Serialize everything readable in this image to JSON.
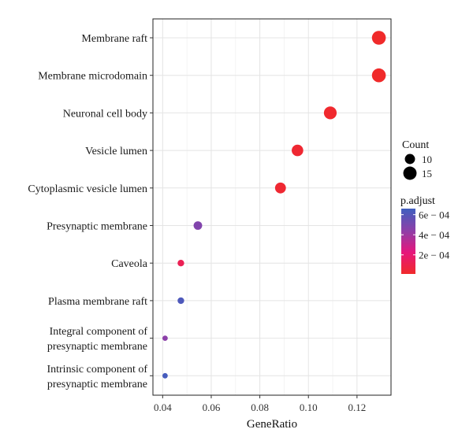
{
  "chart_data": {
    "type": "scatter",
    "title": "",
    "xlabel": "GeneRatio",
    "ylabel": "",
    "xlim": [
      0.036,
      0.134
    ],
    "x_ticks": [
      0.04,
      0.06,
      0.08,
      0.1,
      0.12
    ],
    "x_tick_labels": [
      "0.04",
      "0.06",
      "0.08",
      "0.10",
      "0.12"
    ],
    "grid": true,
    "legend_position": "right",
    "categories": [
      [
        "Membrane raft"
      ],
      [
        "Membrane microdomain"
      ],
      [
        "Neuronal cell body"
      ],
      [
        "Vesicle lumen"
      ],
      [
        "Cytoplasmic vesicle lumen"
      ],
      [
        "Presynaptic membrane"
      ],
      [
        "Caveola"
      ],
      [
        "Plasma membrane raft"
      ],
      [
        "Integral component of",
        "presynaptic membrane"
      ],
      [
        "Intrinsic component of",
        "presynaptic membrane"
      ]
    ],
    "points": [
      {
        "x": 0.129,
        "count": 16,
        "p_adjust": 1e-05
      },
      {
        "x": 0.129,
        "count": 16,
        "p_adjust": 1e-05
      },
      {
        "x": 0.109,
        "count": 14,
        "p_adjust": 2e-05
      },
      {
        "x": 0.0955,
        "count": 12,
        "p_adjust": 3e-05
      },
      {
        "x": 0.0885,
        "count": 11,
        "p_adjust": 3e-05
      },
      {
        "x": 0.0545,
        "count": 8,
        "p_adjust": 0.00048
      },
      {
        "x": 0.0475,
        "count": 6,
        "p_adjust": 0.00012
      },
      {
        "x": 0.0475,
        "count": 6,
        "p_adjust": 0.00062
      },
      {
        "x": 0.041,
        "count": 5,
        "p_adjust": 0.00045
      },
      {
        "x": 0.041,
        "count": 5,
        "p_adjust": 0.00064
      }
    ],
    "size_legend": {
      "title": "Count",
      "entries": [
        {
          "label": "10",
          "value": 10
        },
        {
          "label": "15",
          "value": 15
        }
      ]
    },
    "color_legend": {
      "title": "p.adjust",
      "range": [
        1e-05,
        0.00066
      ],
      "ticks": [
        {
          "label": "6e − 04",
          "value": 0.0006
        },
        {
          "label": "4e − 04",
          "value": 0.0004
        },
        {
          "label": "2e − 04",
          "value": 0.0002
        }
      ],
      "colors": [
        "#f02a2a",
        "#e6167c",
        "#8e3fa8",
        "#3f5fbf"
      ]
    }
  }
}
